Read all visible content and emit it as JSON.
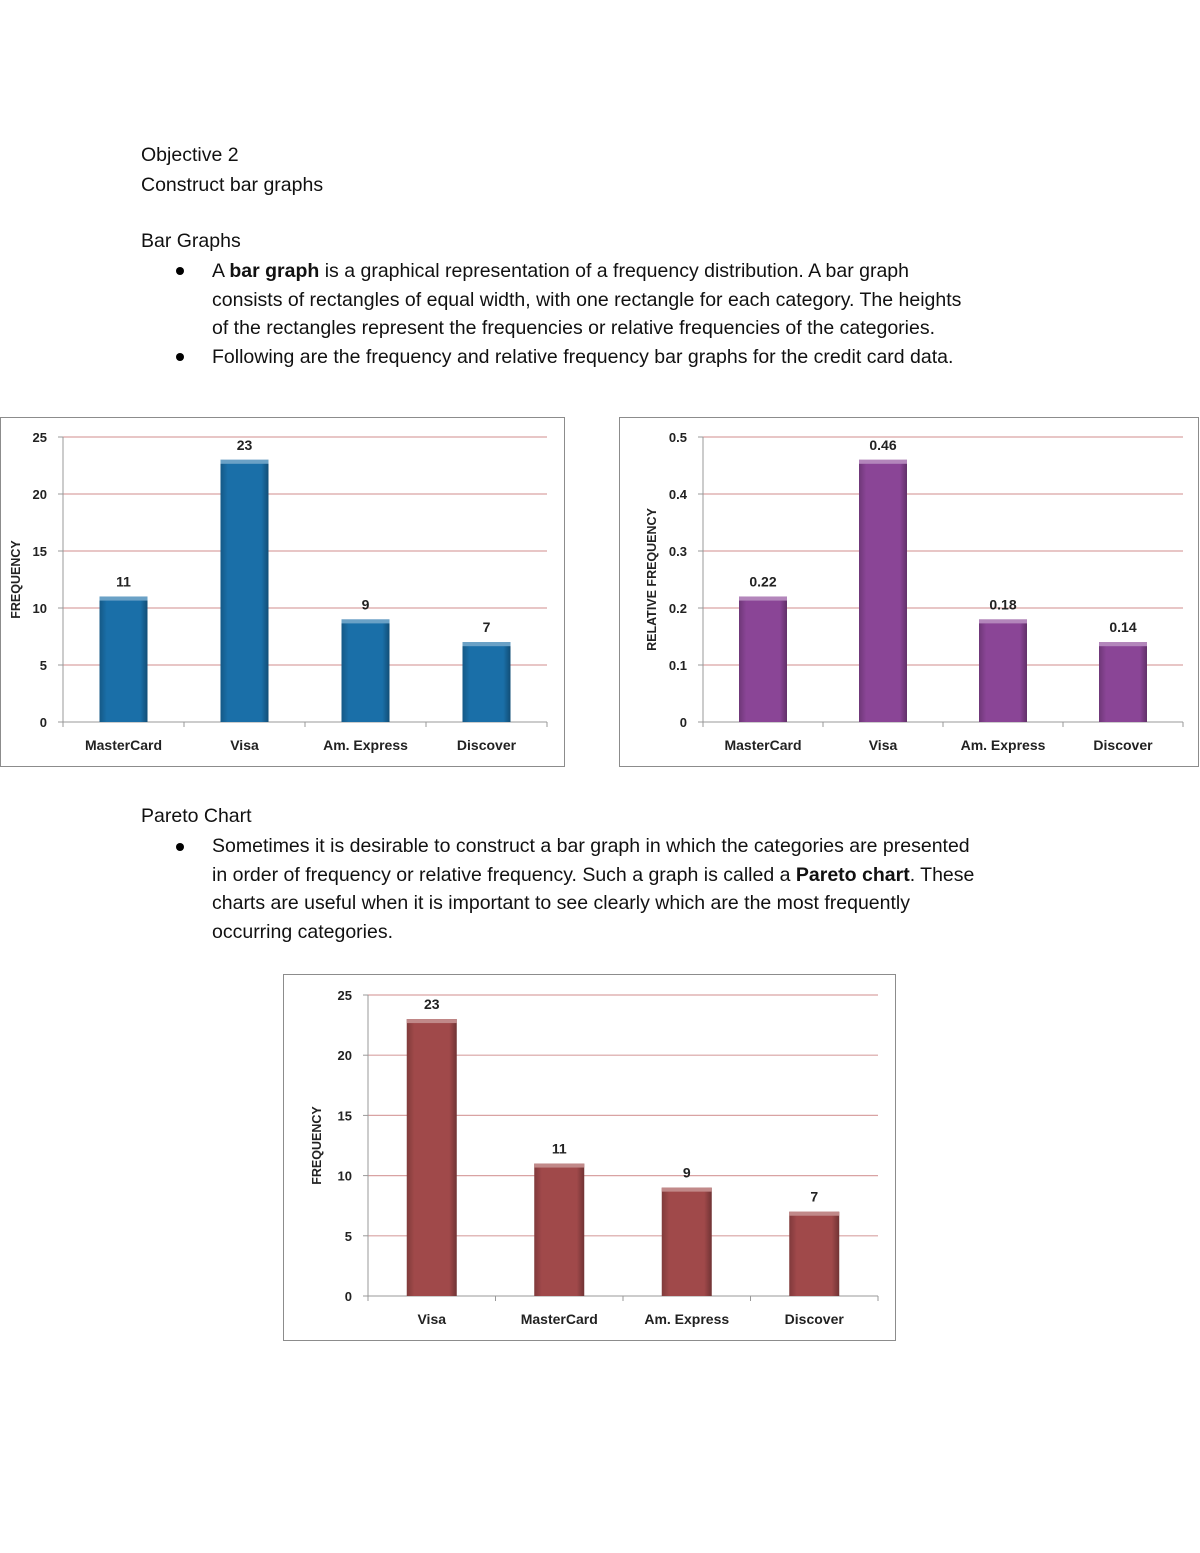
{
  "heading": {
    "objective": "Objective 2",
    "subtitle": "Construct bar graphs"
  },
  "bar_graphs": {
    "title": "Bar Graphs",
    "bullet1": {
      "pre": "A ",
      "bold": "bar graph",
      "post": " is a graphical representation of a frequency distribution. A bar graph",
      "line2": "consists of rectangles of equal width, with one rectangle for each category. The heights",
      "line3": "of the rectangles represent the frequencies or relative frequencies of the categories."
    },
    "bullet2": "Following are the frequency and relative frequency bar graphs for the credit card data."
  },
  "pareto": {
    "title": "Pareto Chart",
    "line1": "Sometimes it is desirable to construct a bar graph in which the categories are presented",
    "line2_pre": "in order of frequency or relative frequency. Such a graph is called a ",
    "line2_bold": "Pareto chart",
    "line2_post": ". These",
    "line3": "charts are useful when it is important to see clearly which are the most frequently",
    "line4": "occurring categories."
  },
  "chart_data": [
    {
      "type": "bar",
      "categories": [
        "MasterCard",
        "Visa",
        "Am. Express",
        "Discover"
      ],
      "values": [
        11,
        23,
        9,
        7
      ],
      "value_labels": [
        "11",
        "23",
        "9",
        "7"
      ],
      "ylabel": "FREQUENCY",
      "xlabel": "",
      "ylim": [
        0,
        25
      ],
      "yticks": [
        "0",
        "5",
        "10",
        "15",
        "20",
        "25"
      ],
      "grid": true,
      "color": "#1a6fa8"
    },
    {
      "type": "bar",
      "categories": [
        "MasterCard",
        "Visa",
        "Am. Express",
        "Discover"
      ],
      "values": [
        0.22,
        0.46,
        0.18,
        0.14
      ],
      "value_labels": [
        "0.22",
        "0.46",
        "0.18",
        "0.14"
      ],
      "ylabel": "RELATIVE FREQUENCY",
      "xlabel": "",
      "ylim": [
        0,
        0.5
      ],
      "yticks": [
        "0",
        "0.1",
        "0.2",
        "0.3",
        "0.4",
        "0.5"
      ],
      "grid": true,
      "color": "#8a4596"
    },
    {
      "type": "bar",
      "categories": [
        "Visa",
        "MasterCard",
        "Am. Express",
        "Discover"
      ],
      "values": [
        23,
        11,
        9,
        7
      ],
      "value_labels": [
        "23",
        "11",
        "9",
        "7"
      ],
      "ylabel": "FREQUENCY",
      "xlabel": "",
      "ylim": [
        0,
        25
      ],
      "yticks": [
        "0",
        "5",
        "10",
        "15",
        "20",
        "25"
      ],
      "grid": true,
      "color": "#a0494a"
    }
  ]
}
